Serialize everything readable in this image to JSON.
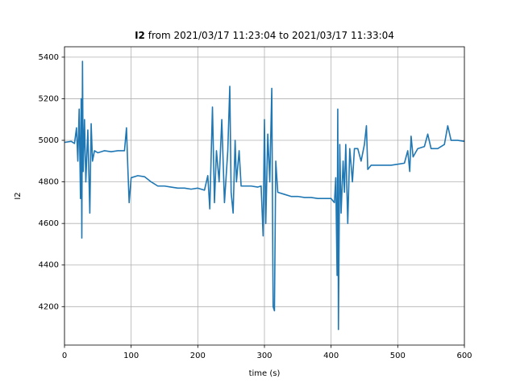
{
  "chart_data": {
    "type": "line",
    "title": "I2",
    "subtitle": "from 2021/03/17 11:23:04 to 2021/03/17 11:33:04",
    "x_label": "time (s)",
    "y_label": "I2",
    "xlim": [
      0,
      600
    ],
    "ylim": [
      4015,
      5450
    ],
    "xticks": [
      0,
      100,
      200,
      300,
      400,
      500,
      600
    ],
    "yticks": [
      4200,
      4400,
      4600,
      4800,
      5000,
      5200,
      5400
    ],
    "grid": true,
    "x": [
      0,
      10,
      15,
      18,
      20,
      22,
      24,
      25,
      26,
      27,
      28,
      30,
      32,
      35,
      38,
      40,
      42,
      45,
      50,
      60,
      70,
      80,
      90,
      93,
      95,
      97,
      100,
      110,
      120,
      130,
      140,
      150,
      160,
      170,
      180,
      190,
      200,
      210,
      215,
      218,
      222,
      225,
      228,
      232,
      236,
      240,
      245,
      248,
      250,
      253,
      256,
      258,
      262,
      265,
      270,
      280,
      290,
      295,
      298,
      300,
      302,
      305,
      308,
      311,
      313,
      315,
      317,
      320,
      330,
      340,
      350,
      360,
      370,
      380,
      390,
      400,
      405,
      407,
      409,
      410,
      411,
      413,
      415,
      418,
      420,
      422,
      425,
      428,
      432,
      435,
      440,
      445,
      450,
      453,
      455,
      460,
      470,
      480,
      490,
      500,
      510,
      515,
      518,
      520,
      523,
      530,
      540,
      545,
      550,
      560,
      570,
      575,
      580,
      590,
      600
    ],
    "series": [
      {
        "name": "I2",
        "color": "#1f77b4",
        "values": [
          4990,
          4995,
          4985,
          5060,
          4900,
          5150,
          4720,
          5200,
          4530,
          5380,
          4850,
          5100,
          4800,
          5050,
          4650,
          5080,
          4900,
          4950,
          4940,
          4950,
          4945,
          4950,
          4950,
          5060,
          4870,
          4700,
          4820,
          4830,
          4825,
          4800,
          4780,
          4780,
          4775,
          4770,
          4770,
          4765,
          4770,
          4760,
          4830,
          4670,
          5160,
          4700,
          4950,
          4800,
          5100,
          4700,
          4950,
          5260,
          4750,
          4650,
          5000,
          4800,
          4950,
          4780,
          4780,
          4780,
          4775,
          4780,
          4540,
          5100,
          4600,
          5030,
          4800,
          5250,
          4200,
          4180,
          4900,
          4750,
          4740,
          4730,
          4730,
          4725,
          4725,
          4720,
          4720,
          4720,
          4700,
          4820,
          4350,
          5150,
          4090,
          4980,
          4650,
          4900,
          4750,
          4980,
          4600,
          4960,
          4800,
          4960,
          4960,
          4900,
          4980,
          5070,
          4860,
          4880,
          4880,
          4880,
          4880,
          4885,
          4890,
          4950,
          4850,
          5020,
          4920,
          4960,
          4970,
          5030,
          4960,
          4960,
          4980,
          5070,
          5000,
          5000,
          4995
        ]
      }
    ]
  }
}
